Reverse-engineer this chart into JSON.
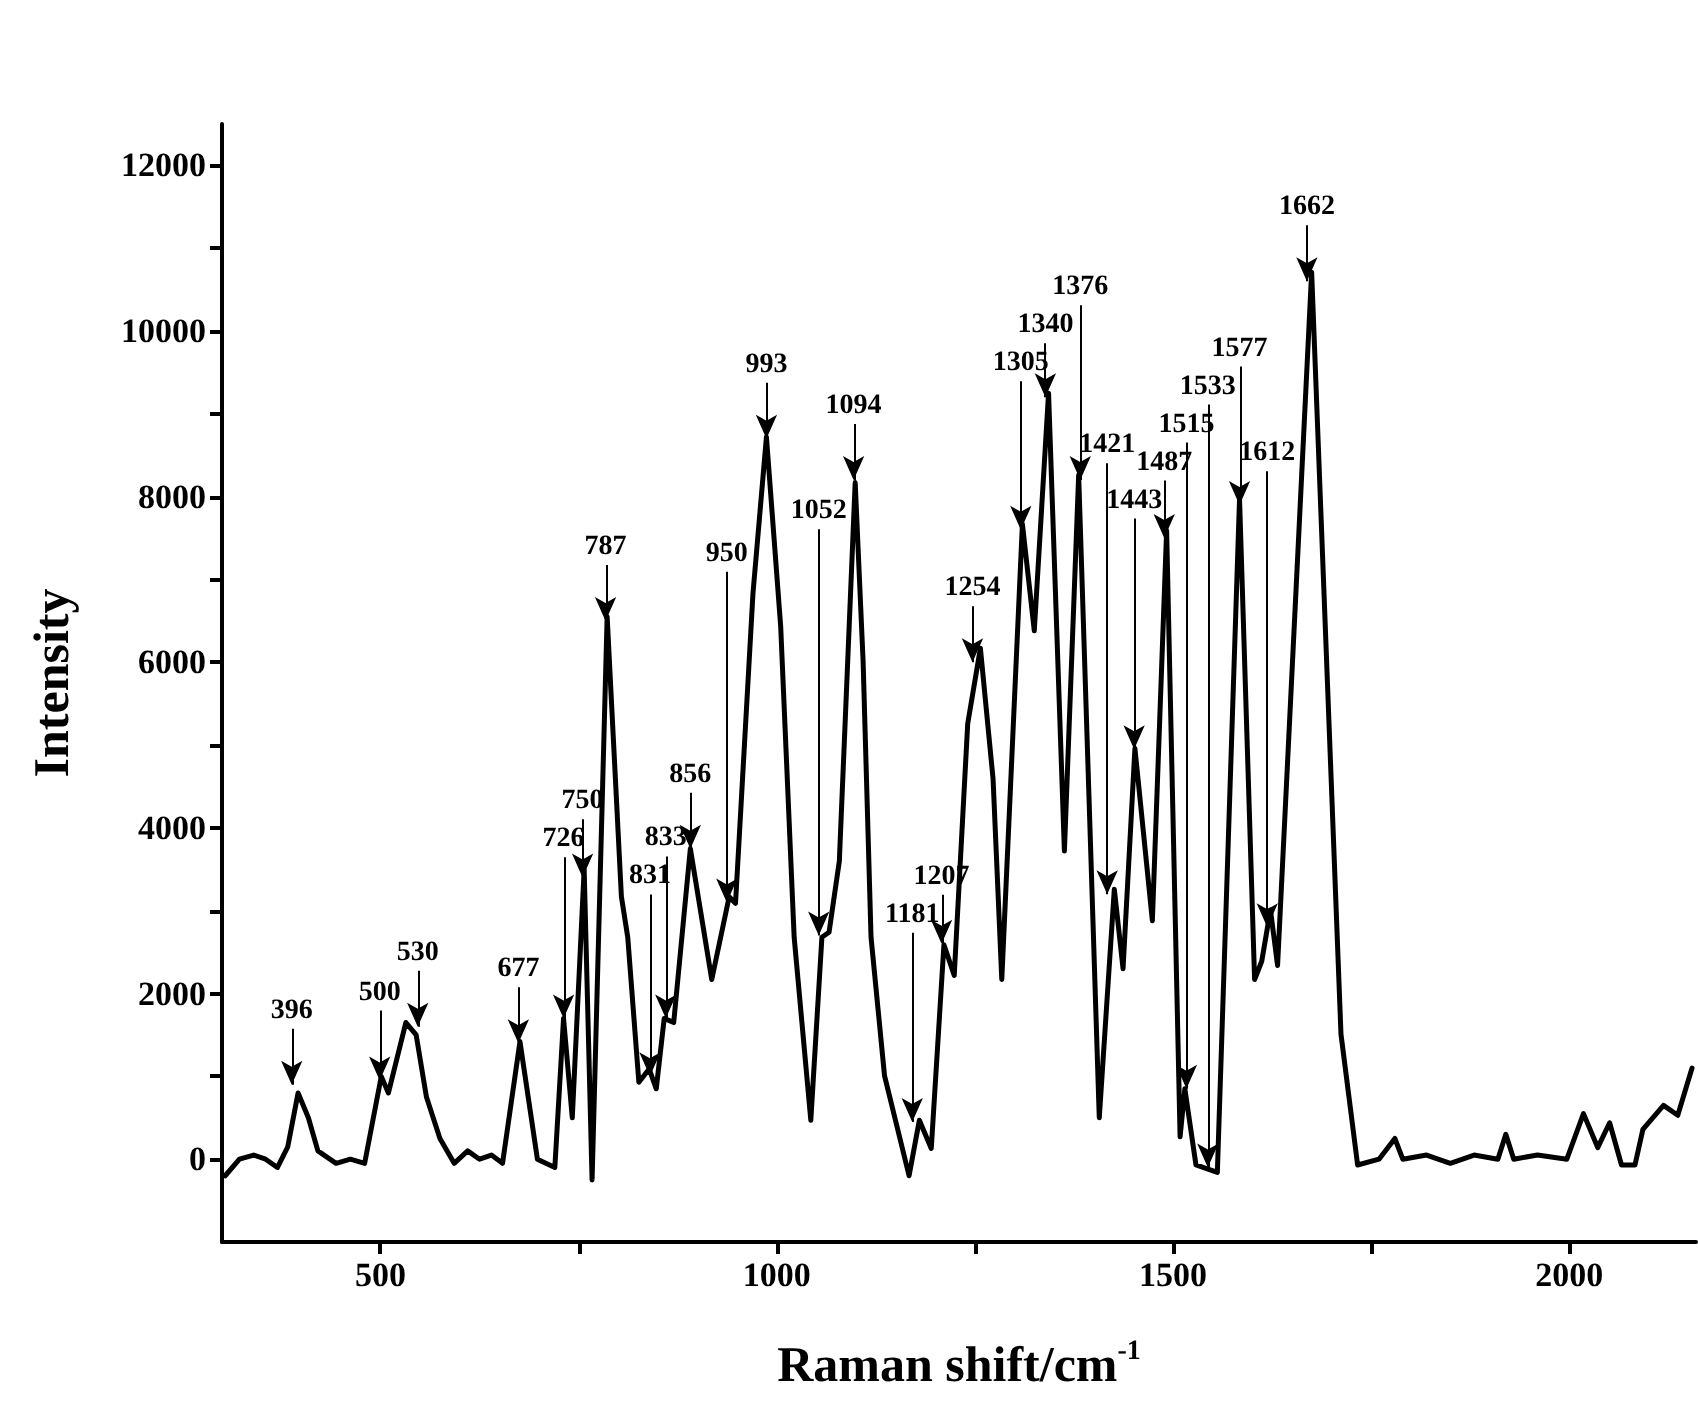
{
  "chart_data": {
    "type": "line",
    "xlabel": "Raman shift/cm$^{-1}$",
    "ylabel": "Intensity",
    "xlim": [
      300,
      2160
    ],
    "xticks": [
      500,
      {
        "value": 750,
        "label": null
      },
      1000,
      {
        "value": 1250,
        "label": null
      },
      1500,
      {
        "value": 1750,
        "label": null
      },
      2000
    ],
    "ylim": [
      -1000,
      12500
    ],
    "yticks": [
      0,
      {
        "value": 1000,
        "label": null
      },
      2000,
      {
        "value": 3000,
        "label": null
      },
      4000,
      {
        "value": 5000,
        "label": null
      },
      6000,
      {
        "value": 7000,
        "label": null
      },
      8000,
      {
        "value": 9000,
        "label": null
      },
      10000,
      {
        "value": 11000,
        "label": null
      },
      12000
    ],
    "grid": false,
    "marker": "none",
    "line_style": "solid",
    "series": [
      {
        "color": "#000000",
        "x": [
          304,
          322,
          340,
          355,
          370,
          383,
          396,
          409,
          421,
          444,
          462,
          480,
          501,
          510,
          532,
          545,
          558,
          575,
          593,
          610,
          625,
          640,
          654,
          676,
          698,
          720,
          731,
          742,
          757,
          767,
          786,
          804,
          812,
          826,
          839,
          848,
          858,
          870,
          891,
          918,
          940,
          948,
          970,
          987,
          1005,
          1022,
          1043,
          1057,
          1066,
          1079,
          1099,
          1109,
          1119,
          1136,
          1167,
          1180,
          1195,
          1211,
          1224,
          1241,
          1257,
          1273,
          1284,
          1310,
          1325,
          1343,
          1363,
          1381,
          1407,
          1426,
          1437,
          1452,
          1474,
          1492,
          1509,
          1515,
          1529,
          1556,
          1584,
          1603,
          1612,
          1623,
          1632,
          1675,
          1712,
          1733,
          1760,
          1780,
          1790,
          1820,
          1850,
          1880,
          1910,
          1920,
          1930,
          1960,
          1997,
          2018,
          2036,
          2051,
          2066,
          2083,
          2093,
          2119,
          2137,
          2155
        ],
        "values": [
          -200,
          0,
          50,
          0,
          -100,
          150,
          800,
          500,
          100,
          -50,
          0,
          -50,
          1000,
          800,
          1650,
          1500,
          750,
          250,
          -50,
          100,
          0,
          50,
          -50,
          1420,
          0,
          -100,
          1700,
          500,
          3500,
          -250,
          6550,
          3170,
          2680,
          930,
          1090,
          850,
          1700,
          1650,
          3750,
          2170,
          3170,
          3090,
          6830,
          8720,
          6430,
          2680,
          470,
          2680,
          2740,
          3600,
          8170,
          6010,
          2680,
          1010,
          -200,
          470,
          130,
          2590,
          2220,
          5260,
          6170,
          4590,
          2170,
          7670,
          6380,
          9250,
          3720,
          8260,
          500,
          3260,
          2300,
          4960,
          2880,
          7590,
          270,
          850,
          -70,
          -160,
          7970,
          2170,
          2390,
          3010,
          2340,
          10710,
          1510,
          -70,
          0,
          250,
          0,
          50,
          -50,
          50,
          0,
          300,
          0,
          50,
          0,
          550,
          140,
          440,
          -70,
          -70,
          360,
          650,
          530,
          1100
        ]
      }
    ],
    "annotations": [
      {
        "text": "396",
        "x": 388,
        "y": 900
      },
      {
        "text": "500",
        "x": 499,
        "y": 950
      },
      {
        "text": "530",
        "x": 547,
        "y": 1600
      },
      {
        "text": "677",
        "x": 674,
        "y": 1400
      },
      {
        "text": "726",
        "x": 731,
        "y": 1700
      },
      {
        "text": "750",
        "x": 755,
        "y": 3400
      },
      {
        "text": "787",
        "x": 784,
        "y": 6500
      },
      {
        "text": "831",
        "x": 840,
        "y": 1000
      },
      {
        "text": "833",
        "x": 860,
        "y": 1700
      },
      {
        "text": "856",
        "x": 891,
        "y": 3750
      },
      {
        "text": "950",
        "x": 937,
        "y": 3100
      },
      {
        "text": "993",
        "x": 987,
        "y": 8700
      },
      {
        "text": "1052",
        "x": 1053,
        "y": 2700
      },
      {
        "text": "1094",
        "x": 1097,
        "y": 8200
      },
      {
        "text": "1181",
        "x": 1171,
        "y": 450
      },
      {
        "text": "1207",
        "x": 1208,
        "y": 2600
      },
      {
        "text": "1254",
        "x": 1247,
        "y": 6000
      },
      {
        "text": "1305",
        "x": 1308,
        "y": 7600
      },
      {
        "text": "1340",
        "x": 1339,
        "y": 9200
      },
      {
        "text": "1376",
        "x": 1383,
        "y": 8200
      },
      {
        "text": "1421",
        "x": 1417,
        "y": 3200
      },
      {
        "text": "1443",
        "x": 1451,
        "y": 4950
      },
      {
        "text": "1487",
        "x": 1489,
        "y": 7500
      },
      {
        "text": "1515",
        "x": 1517,
        "y": 850
      },
      {
        "text": "1533",
        "x": 1544,
        "y": -100
      },
      {
        "text": "1577",
        "x": 1584,
        "y": 7900
      },
      {
        "text": "1612",
        "x": 1619,
        "y": 2800
      },
      {
        "text": "1662",
        "x": 1669,
        "y": 10600
      }
    ]
  }
}
